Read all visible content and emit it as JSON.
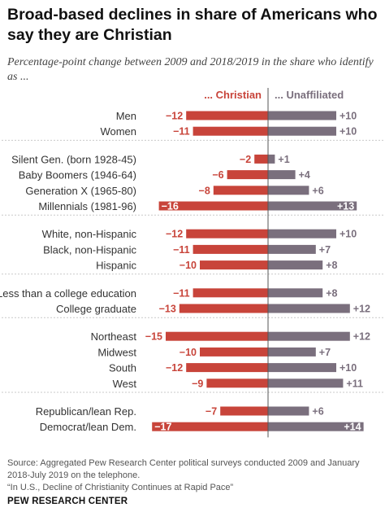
{
  "title": "Broad-based declines in share of Americans who say they are Christian",
  "subtitle": "Percentage-point change between 2009 and 2018/2019 in the share who identify as ...",
  "source_lines": [
    "Source: Aggregated Pew Research Center political surveys conducted 2009 and January",
    "2018-July 2019 on the telephone.",
    "“In U.S., Decline of Christianity Continues at Rapid Pace”"
  ],
  "brand": "PEW RESEARCH CENTER",
  "chart_data": {
    "type": "bar",
    "orientation": "horizontal-diverging",
    "column_headers": {
      "christian": "... Christian",
      "unaffiliated": "... Unaffiliated"
    },
    "colors": {
      "christian": "#c8443a",
      "unaffiliated": "#7a6f7d",
      "white_label": "#ffffff"
    },
    "groups": [
      {
        "rows": [
          {
            "label": "Men",
            "christian": -12,
            "unaffiliated": 10,
            "christian_text": "−12",
            "unaffiliated_text": "+10"
          },
          {
            "label": "Women",
            "christian": -11,
            "unaffiliated": 10,
            "christian_text": "−11",
            "unaffiliated_text": "+10"
          }
        ]
      },
      {
        "rows": [
          {
            "label": "Silent Gen. (born 1928-45)",
            "christian": -2,
            "unaffiliated": 1,
            "christian_text": "−2",
            "unaffiliated_text": "+1"
          },
          {
            "label": "Baby Boomers (1946-64)",
            "christian": -6,
            "unaffiliated": 4,
            "christian_text": "−6",
            "unaffiliated_text": "+4"
          },
          {
            "label": "Generation X (1965-80)",
            "christian": -8,
            "unaffiliated": 6,
            "christian_text": "−8",
            "unaffiliated_text": "+6"
          },
          {
            "label": "Millennials (1981-96)",
            "christian": -16,
            "unaffiliated": 13,
            "christian_text": "−16",
            "unaffiliated_text": "+13",
            "labels_inside": true
          }
        ]
      },
      {
        "rows": [
          {
            "label": "White, non-Hispanic",
            "christian": -12,
            "unaffiliated": 10,
            "christian_text": "−12",
            "unaffiliated_text": "+10"
          },
          {
            "label": "Black, non-Hispanic",
            "christian": -11,
            "unaffiliated": 7,
            "christian_text": "−11",
            "unaffiliated_text": "+7"
          },
          {
            "label": "Hispanic",
            "christian": -10,
            "unaffiliated": 8,
            "christian_text": "−10",
            "unaffiliated_text": "+8"
          }
        ]
      },
      {
        "rows": [
          {
            "label": "Less than a college education",
            "christian": -11,
            "unaffiliated": 8,
            "christian_text": "−11",
            "unaffiliated_text": "+8"
          },
          {
            "label": "College graduate",
            "christian": -13,
            "unaffiliated": 12,
            "christian_text": "−13",
            "unaffiliated_text": "+12"
          }
        ]
      },
      {
        "rows": [
          {
            "label": "Northeast",
            "christian": -15,
            "unaffiliated": 12,
            "christian_text": "−15",
            "unaffiliated_text": "+12"
          },
          {
            "label": "Midwest",
            "christian": -10,
            "unaffiliated": 7,
            "christian_text": "−10",
            "unaffiliated_text": "+7"
          },
          {
            "label": "South",
            "christian": -12,
            "unaffiliated": 10,
            "christian_text": "−12",
            "unaffiliated_text": "+10"
          },
          {
            "label": "West",
            "christian": -9,
            "unaffiliated": 11,
            "christian_text": "−9",
            "unaffiliated_text": "+11"
          }
        ]
      },
      {
        "rows": [
          {
            "label": "Republican/lean Rep.",
            "christian": -7,
            "unaffiliated": 6,
            "christian_text": "−7",
            "unaffiliated_text": "+6"
          },
          {
            "label": "Democrat/lean Dem.",
            "christian": -17,
            "unaffiliated": 14,
            "christian_text": "−17",
            "unaffiliated_text": "+14",
            "labels_inside": true
          }
        ]
      }
    ]
  }
}
